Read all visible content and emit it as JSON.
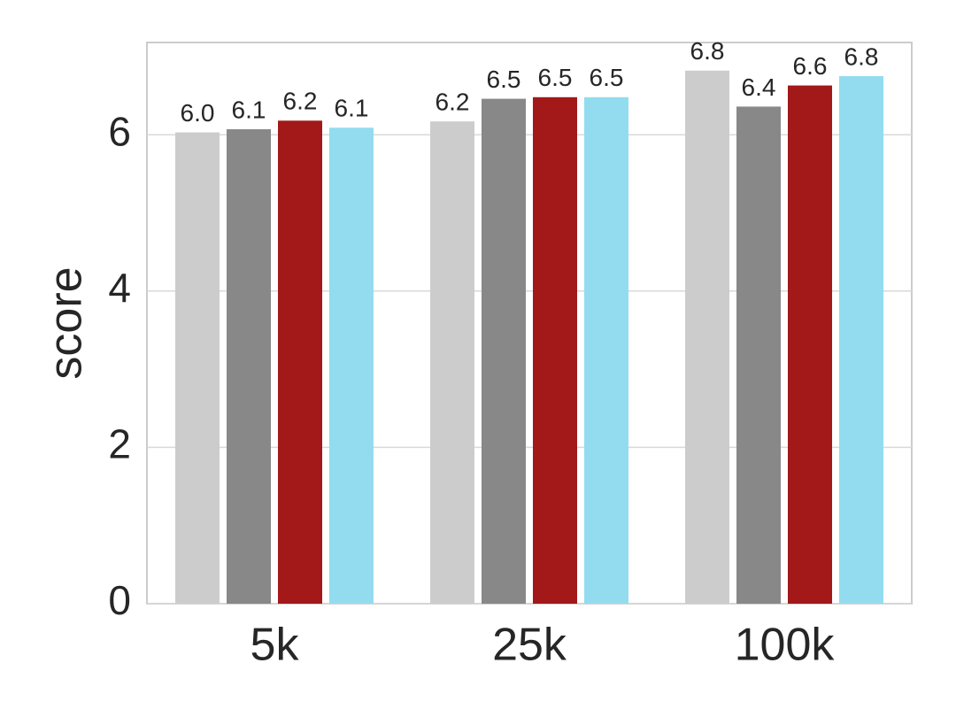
{
  "chart_data": {
    "type": "bar",
    "y_label": "score",
    "categories": [
      "5k",
      "25k",
      "100k"
    ],
    "series": [
      {
        "color": "#cccccc",
        "values": [
          6.03,
          6.17,
          6.82
        ],
        "value_labels": [
          "6.0",
          "6.2",
          "6.8"
        ]
      },
      {
        "color": "#888888",
        "values": [
          6.07,
          6.46,
          6.36
        ],
        "value_labels": [
          "6.1",
          "6.5",
          "6.4"
        ]
      },
      {
        "color": "#a31818",
        "values": [
          6.18,
          6.48,
          6.63
        ],
        "value_labels": [
          "6.2",
          "6.5",
          "6.6"
        ]
      },
      {
        "color": "#93dcef",
        "values": [
          6.09,
          6.48,
          6.75
        ],
        "value_labels": [
          "6.1",
          "6.5",
          "6.8"
        ]
      }
    ],
    "ylim": [
      0,
      7.18
    ],
    "yticks": [
      0,
      2,
      4,
      6
    ],
    "grid": true
  }
}
